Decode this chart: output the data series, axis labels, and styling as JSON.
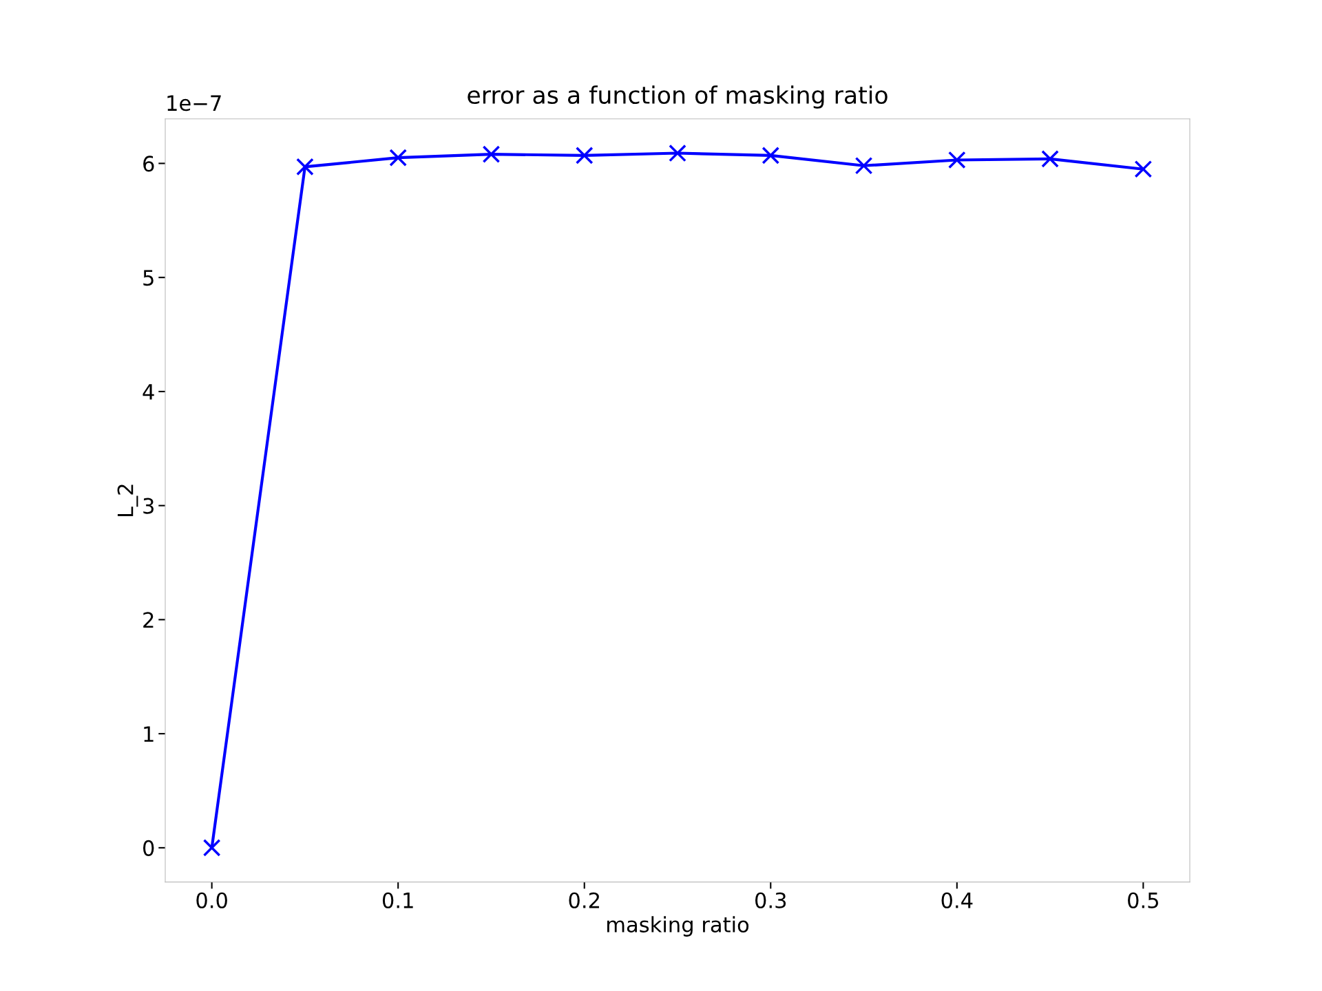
{
  "chart_data": {
    "type": "line",
    "title": "error as a function of masking ratio",
    "xlabel": "masking ratio",
    "ylabel": "L_2",
    "x": [
      0.0,
      0.05,
      0.1,
      0.15,
      0.2,
      0.25,
      0.3,
      0.35,
      0.4,
      0.45,
      0.5
    ],
    "series": [
      {
        "color": "#0000ff",
        "values": [
          0.0,
          5.97,
          6.05,
          6.08,
          6.07,
          6.09,
          6.07,
          5.98,
          6.03,
          6.04,
          5.95
        ]
      }
    ],
    "xlim": [
      -0.025,
      0.525
    ],
    "xticks": [
      {
        "value": 0,
        "label": "0.0"
      },
      0.1,
      0.2,
      0.3,
      0.4,
      0.5
    ],
    "ylim": [
      -0.3,
      6.39
    ],
    "yticks": [
      0,
      1,
      2,
      3,
      4,
      5,
      6
    ],
    "annotations": [
      "1e−7"
    ],
    "marker": "cross",
    "line_style": "solid",
    "grid": false
  }
}
